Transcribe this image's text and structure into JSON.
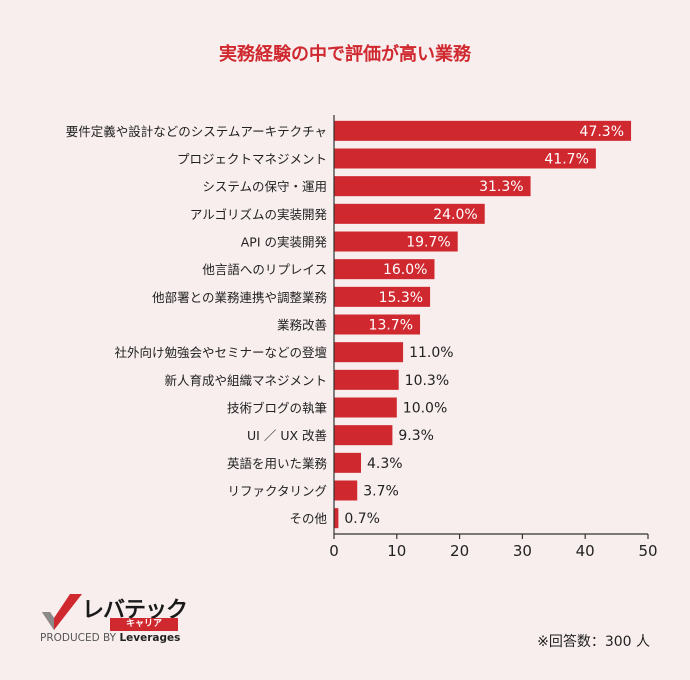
{
  "chart_data": {
    "type": "bar",
    "orientation": "horizontal",
    "title": "実務経験の中で評価が高い業務",
    "categories": [
      "要件定義や設計などのシステムアーキテクチャ",
      "プロジェクトマネジメント",
      "システムの保守・運用",
      "アルゴリズムの実装開発",
      "API の実装開発",
      "他言語へのリプレイス",
      "他部署との業務連携や調整業務",
      "業務改善",
      "社外向け勉強会やセミナーなどの登壇",
      "新人育成や組織マネジメント",
      "技術ブログの執筆",
      "UI ／ UX 改善",
      "英語を用いた業務",
      "リファクタリング",
      "その他"
    ],
    "values": [
      47.3,
      41.7,
      31.3,
      24.0,
      19.7,
      16.0,
      15.3,
      13.7,
      11.0,
      10.3,
      10.0,
      9.3,
      4.3,
      3.7,
      0.7
    ],
    "value_labels": [
      "47.3%",
      "41.7%",
      "31.3%",
      "24.0%",
      "19.7%",
      "16.0%",
      "15.3%",
      "13.7%",
      "11.0%",
      "10.3%",
      "10.0%",
      "9.3%",
      "4.3%",
      "3.7%",
      "0.7%"
    ],
    "xlim": [
      0,
      50
    ],
    "xticks": [
      "0",
      "10",
      "20",
      "30",
      "40",
      "50"
    ],
    "grid": false,
    "bar_color": "#d0282f"
  },
  "footer": {
    "note": "※回答数：300 人",
    "logo_text": "レバテック",
    "logo_sub": "キャリア",
    "produced_by": "PRODUCED BY",
    "brand": "Leverages"
  }
}
